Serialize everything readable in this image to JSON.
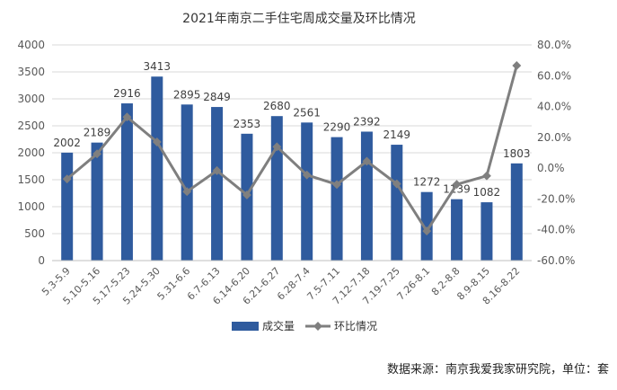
{
  "source_note": "数据来源：南京我爱我家研究院，单位：套",
  "chart_data": {
    "type": "bar",
    "title": "2021年南京二手住宅周成交量及环比情况",
    "categories": [
      "5.3-5.9",
      "5.10-5.16",
      "5.17-5.23",
      "5.24-5.30",
      "5.31-6.6",
      "6.7-6.13",
      "6.14-6.20",
      "6.21-6.27",
      "6.28-7.4",
      "7.5-7.11",
      "7.12-7.18",
      "7.19-7.25",
      "7.26-8.1",
      "8.2-8.8",
      "8.9-8.15",
      "8.16-8.22"
    ],
    "series": [
      {
        "name": "成交量",
        "type": "bar",
        "axis": "left",
        "color": "#2f5b9e",
        "values": [
          2002,
          2189,
          2916,
          3413,
          2895,
          2849,
          2353,
          2680,
          2561,
          2290,
          2392,
          2149,
          1272,
          1139,
          1082,
          1803
        ]
      },
      {
        "name": "环比情况",
        "type": "line",
        "axis": "right",
        "color": "#7f7f7f",
        "values": [
          -7.0,
          9.3,
          33.2,
          17.0,
          -15.2,
          -1.6,
          -17.4,
          13.9,
          -4.4,
          -10.6,
          4.5,
          -10.2,
          -40.8,
          -10.5,
          -5.0,
          66.6
        ]
      }
    ],
    "y_left": {
      "ylim": [
        0,
        4000
      ],
      "ticks": [
        "0",
        "500",
        "1000",
        "1500",
        "2000",
        "2500",
        "3000",
        "3500",
        "4000"
      ]
    },
    "y_right": {
      "ylim": [
        -60,
        80
      ],
      "ticks": [
        "-60.0%",
        "-40.0%",
        "-20.0%",
        "0.0%",
        "20.0%",
        "40.0%",
        "60.0%",
        "80.0%"
      ]
    },
    "legend_position": "bottom-center",
    "grid": true
  }
}
